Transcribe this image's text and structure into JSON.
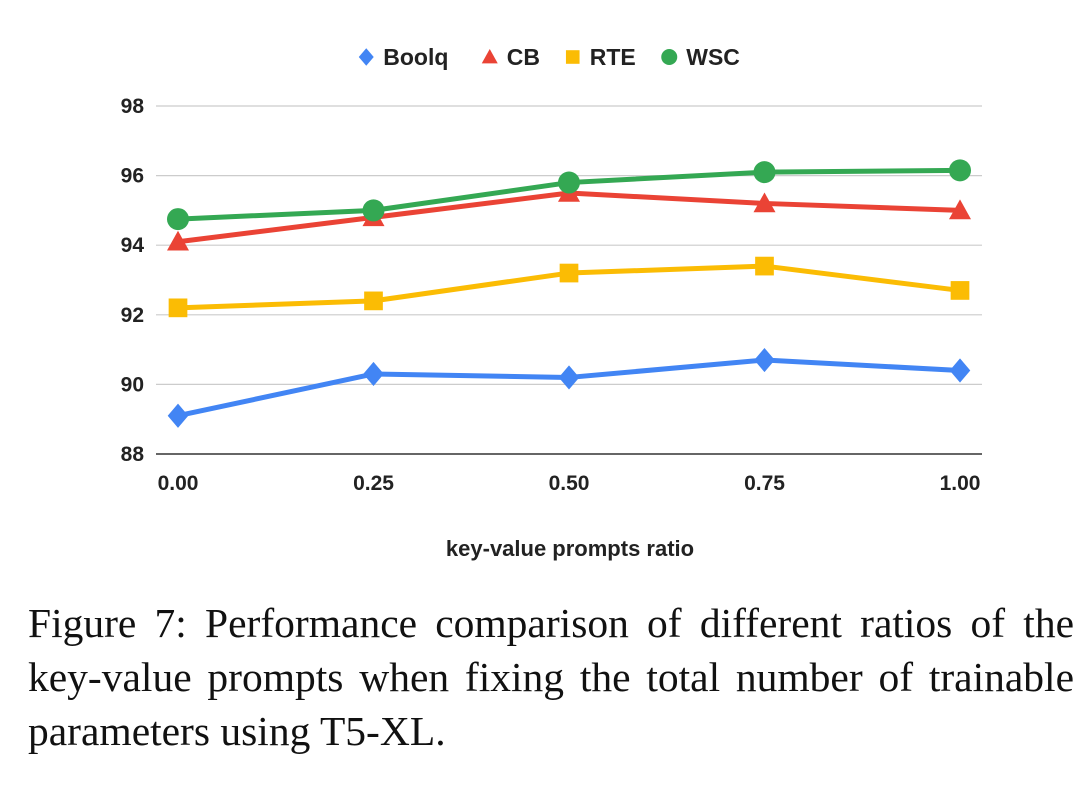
{
  "chart_data": {
    "type": "line",
    "x": [
      0.0,
      0.25,
      0.5,
      0.75,
      1.0
    ],
    "x_tick_labels": [
      "0.00",
      "0.25",
      "0.50",
      "0.75",
      "1.00"
    ],
    "y_tick_labels": [
      "88",
      "90",
      "92",
      "94",
      "96",
      "98"
    ],
    "ylim": [
      88,
      98
    ],
    "xlabel": "key-value prompts ratio",
    "ylabel": "",
    "grid": true,
    "legend_position": "top",
    "series": [
      {
        "name": "Boolq",
        "marker": "diamond",
        "color": "#4285F4",
        "values": [
          89.1,
          90.3,
          90.2,
          90.7,
          90.4
        ]
      },
      {
        "name": "CB",
        "marker": "triangle",
        "color": "#EA4335",
        "values": [
          94.1,
          94.8,
          95.5,
          95.2,
          95.0
        ]
      },
      {
        "name": "RTE",
        "marker": "square",
        "color": "#FBBC04",
        "values": [
          92.2,
          92.4,
          93.2,
          93.4,
          92.7
        ]
      },
      {
        "name": "WSC",
        "marker": "circle",
        "color": "#34A853",
        "values": [
          94.75,
          95.0,
          95.8,
          96.1,
          96.15
        ]
      }
    ]
  },
  "caption": "Figure 7: Performance comparison of different ratios of the key-value prompts when fixing the total number of trainable parameters using T5-XL."
}
